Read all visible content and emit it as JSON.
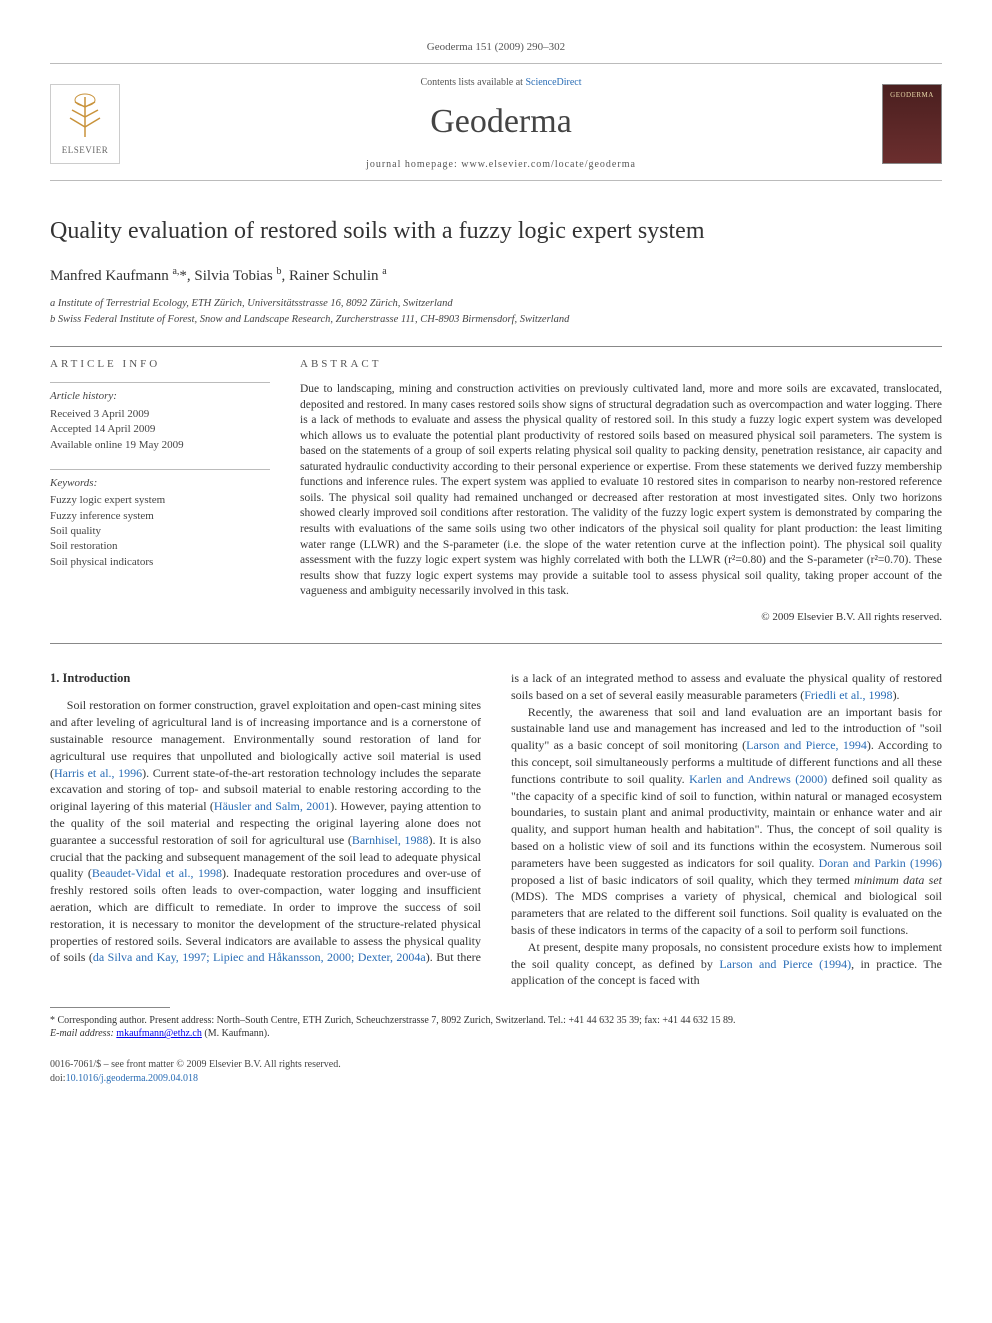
{
  "running_head": "Geoderma 151 (2009) 290–302",
  "banner": {
    "contents_prefix": "Contents lists available at ",
    "contents_link": "ScienceDirect",
    "journal": "Geoderma",
    "homepage_prefix": "journal homepage: ",
    "homepage": "www.elsevier.com/locate/geoderma",
    "publisher_logo_text": "ELSEVIER",
    "cover_text": "GEODERMA"
  },
  "title": "Quality evaluation of restored soils with a fuzzy logic expert system",
  "authors_html": "Manfred Kaufmann <sup>a,</sup>*, Silvia Tobias <sup>b</sup>, Rainer Schulin <sup>a</sup>",
  "affiliations": [
    "a Institute of Terrestrial Ecology, ETH Zürich, Universitätsstrasse 16, 8092 Zürich, Switzerland",
    "b Swiss Federal Institute of Forest, Snow and Landscape Research, Zurcherstrasse 111, CH-8903 Birmensdorf, Switzerland"
  ],
  "article_info": {
    "heading": "ARTICLE INFO",
    "history_label": "Article history:",
    "history": [
      "Received 3 April 2009",
      "Accepted 14 April 2009",
      "Available online 19 May 2009"
    ],
    "keywords_label": "Keywords:",
    "keywords": [
      "Fuzzy logic expert system",
      "Fuzzy inference system",
      "Soil quality",
      "Soil restoration",
      "Soil physical indicators"
    ]
  },
  "abstract": {
    "heading": "ABSTRACT",
    "text": "Due to landscaping, mining and construction activities on previously cultivated land, more and more soils are excavated, translocated, deposited and restored. In many cases restored soils show signs of structural degradation such as overcompaction and water logging. There is a lack of methods to evaluate and assess the physical quality of restored soil. In this study a fuzzy logic expert system was developed which allows us to evaluate the potential plant productivity of restored soils based on measured physical soil parameters. The system is based on the statements of a group of soil experts relating physical soil quality to packing density, penetration resistance, air capacity and saturated hydraulic conductivity according to their personal experience or expertise. From these statements we derived fuzzy membership functions and inference rules. The expert system was applied to evaluate 10 restored sites in comparison to nearby non-restored reference soils. The physical soil quality had remained unchanged or decreased after restoration at most investigated sites. Only two horizons showed clearly improved soil conditions after restoration. The validity of the fuzzy logic expert system is demonstrated by comparing the results with evaluations of the same soils using two other indicators of the physical soil quality for plant production: the least limiting water range (LLWR) and the S-parameter (i.e. the slope of the water retention curve at the inflection point). The physical soil quality assessment with the fuzzy logic expert system was highly correlated with both the LLWR (r²=0.80) and the S-parameter (r²=0.70). These results show that fuzzy logic expert systems may provide a suitable tool to assess physical soil quality, taking proper account of the vagueness and ambiguity necessarily involved in this task.",
    "copyright": "© 2009 Elsevier B.V. All rights reserved."
  },
  "body": {
    "sec1_head": "1. Introduction",
    "p1_a": "Soil restoration on former construction, gravel exploitation and open-cast mining sites and after leveling of agricultural land is of increasing importance and is a cornerstone of sustainable resource management. Environmentally sound restoration of land for agricultural use requires that unpolluted and biologically active soil material is used (",
    "p1_link1": "Harris et al., 1996",
    "p1_b": "). Current state-of-the-art restoration technology includes the separate excavation and storing of top- and subsoil material to enable restoring according to the original layering of this material (",
    "p1_link2": "Häusler and Salm, 2001",
    "p1_c": "). However, paying attention to the quality of the soil material and respecting the original layering alone does not guarantee a successful restoration of soil for agricultural use (",
    "p1_link3": "Barnhisel, 1988",
    "p1_d": "). It is also crucial that the packing and subsequent management of the soil lead to adequate physical quality (",
    "p1_link4": "Beaudet-Vidal et al., 1998",
    "p1_e": "). Inadequate restoration procedures and over-use of freshly restored soils often leads to over-compaction, water logging and insufficient aeration, which are difficult to remediate. In order to improve the success of soil restoration, it is necessary to monitor the development of the structure-related physical properties of restored soils. Several indicators are available to assess the ",
    "p1_f": "physical quality of soils (",
    "p1_link5": "da Silva and Kay, 1997; Lipiec and Håkansson, 2000; Dexter, 2004a",
    "p1_g": "). But there is a lack of an integrated method to assess and evaluate the physical quality of restored soils based on a set of several easily measurable parameters (",
    "p1_link6": "Friedli et al., 1998",
    "p1_h": ").",
    "p2_a": "Recently, the awareness that soil and land evaluation are an important basis for sustainable land use and management has increased and led to the introduction of \"soil quality\" as a basic concept of soil monitoring (",
    "p2_link1": "Larson and Pierce, 1994",
    "p2_b": "). According to this concept, soil simultaneously performs a multitude of different functions and all these functions contribute to soil quality. ",
    "p2_link2": "Karlen and Andrews (2000)",
    "p2_c": " defined soil quality as \"the capacity of a specific kind of soil to function, within natural or managed ecosystem boundaries, to sustain plant and animal productivity, maintain or enhance water and air quality, and support human health and habitation\". Thus, the concept of soil quality is based on a holistic view of soil and its functions within the ecosystem. Numerous soil parameters have been suggested as indicators for soil quality. ",
    "p2_link3": "Doran and Parkin (1996)",
    "p2_d": " proposed a list of basic indicators of soil quality, which they termed ",
    "p2_e_italic": "minimum data set",
    "p2_f": " (MDS). The MDS comprises a variety of physical, chemical and biological soil parameters that are related to the different soil functions. Soil quality is evaluated on the basis of these indicators in terms of the capacity of a soil to perform soil functions.",
    "p3_a": "At present, despite many proposals, no consistent procedure exists how to implement the soil quality concept, as defined by ",
    "p3_link1": "Larson and Pierce (1994)",
    "p3_b": ", in practice. The application of the concept is faced with"
  },
  "footnote": {
    "star": "* Corresponding author. Present address: North–South Centre, ETH Zurich, Scheuchzerstrasse 7, 8092 Zurich, Switzerland. Tel.: +41 44 632 35 39; fax: +41 44 632 15 89.",
    "email_label": "E-mail address:",
    "email": "mkaufmann@ethz.ch",
    "email_suffix": "(M. Kaufmann)."
  },
  "bottom": {
    "line1": "0016-7061/$ – see front matter © 2009 Elsevier B.V. All rights reserved.",
    "doi_prefix": "doi:",
    "doi": "10.1016/j.geoderma.2009.04.018"
  },
  "colors": {
    "link": "#2a6db5",
    "text": "#333333",
    "muted": "#555555",
    "rule": "#888888"
  }
}
